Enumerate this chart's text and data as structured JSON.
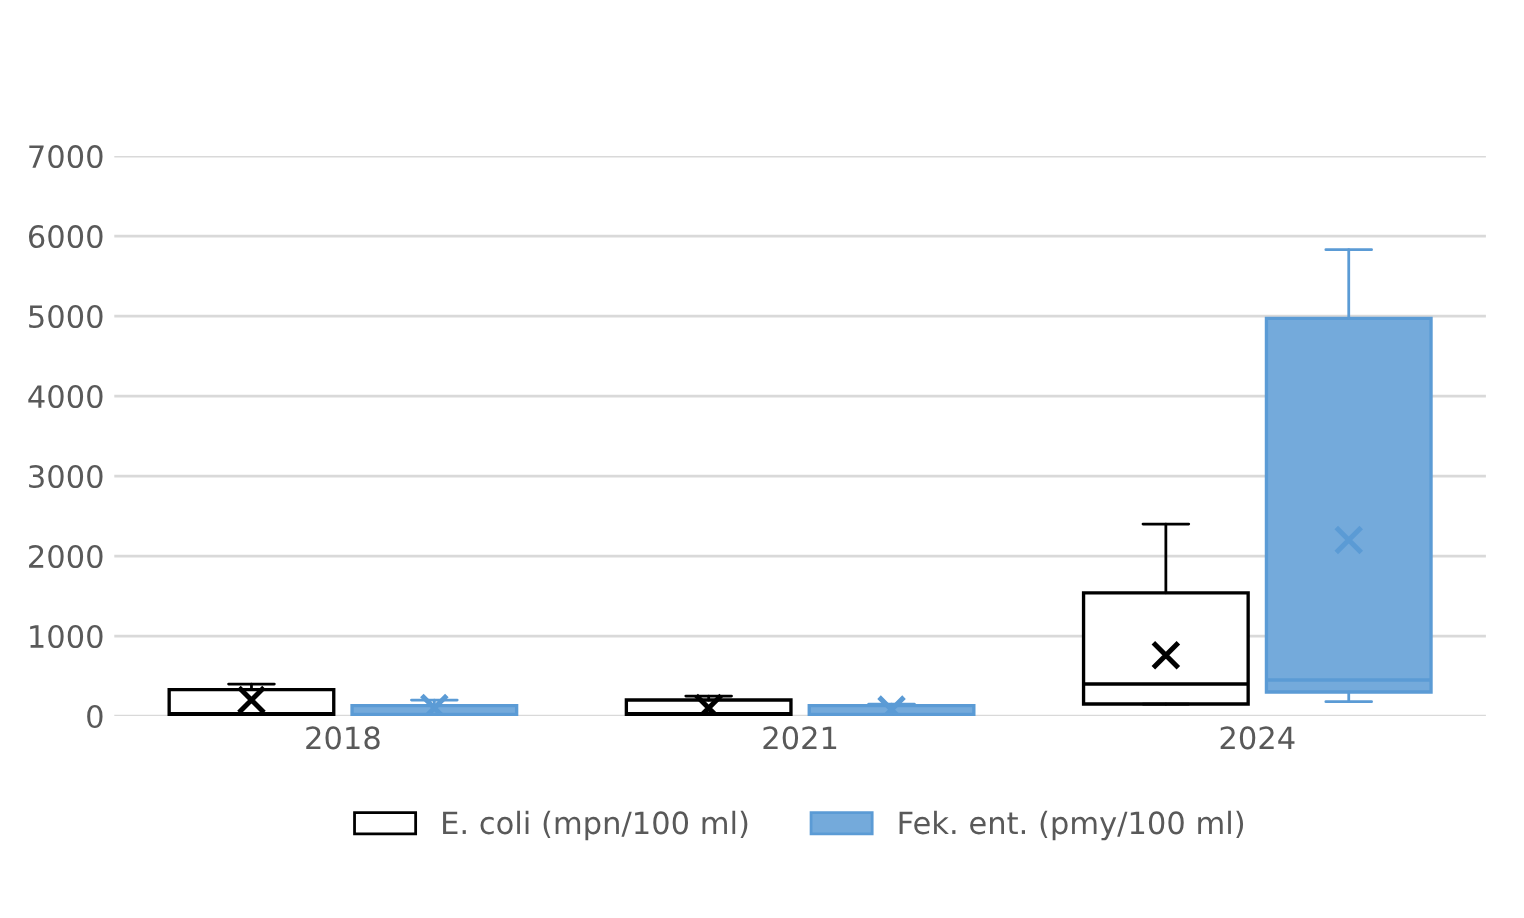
{
  "chart_data": {
    "type": "box",
    "categories": [
      "2018",
      "2021",
      "2024"
    ],
    "ylim": [
      0,
      7000
    ],
    "yticks": [
      0,
      1000,
      2000,
      3000,
      4000,
      5000,
      6000,
      7000
    ],
    "grid": "y",
    "legend": "bottom",
    "marker": "cross",
    "series": [
      {
        "name": "E. coli (mpn/100 ml)",
        "color": "#000000",
        "boxes": [
          {
            "low": 0,
            "q1": 10,
            "median": 30,
            "q3": 330,
            "high": 400,
            "mean": 200
          },
          {
            "low": 0,
            "q1": 10,
            "median": 30,
            "q3": 200,
            "high": 250,
            "mean": 100
          },
          {
            "low": 150,
            "q1": 150,
            "median": 400,
            "q3": 1540,
            "high": 2400,
            "mean": 760
          }
        ]
      },
      {
        "name": "Fek. ent. (pmy/100 ml)",
        "color": "#5b9bd5",
        "boxes": [
          {
            "low": 0,
            "q1": 10,
            "median": 20,
            "q3": 130,
            "high": 200,
            "mean": 100
          },
          {
            "low": 0,
            "q1": 10,
            "median": 20,
            "q3": 130,
            "high": 150,
            "mean": 80
          },
          {
            "low": 180,
            "q1": 300,
            "median": 450,
            "q3": 4970,
            "high": 5830,
            "mean": 2200
          }
        ]
      }
    ]
  }
}
